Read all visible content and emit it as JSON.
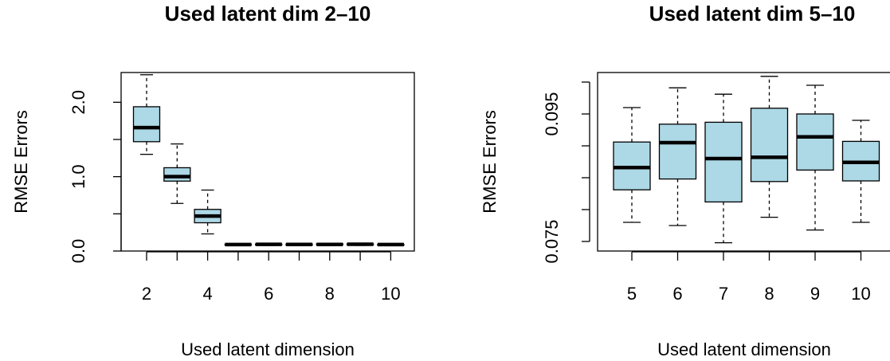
{
  "chart_data": [
    {
      "type": "boxplot",
      "title": "Used latent dim 2–10",
      "xlabel": "Used latent dimension",
      "ylabel": "RMSE Errors",
      "ylim": [
        0,
        2.4
      ],
      "grid": false,
      "box_color": "#add8e6",
      "categories": [
        "2",
        "3",
        "4",
        "5",
        "6",
        "7",
        "8",
        "9",
        "10"
      ],
      "x_tick_labels": [
        "2",
        "4",
        "6",
        "8",
        "10"
      ],
      "y_ticks": [
        0.0,
        0.5,
        1.0,
        1.5,
        2.0
      ],
      "y_tick_labels": [
        "0.0",
        "1.0",
        "2.0"
      ],
      "boxes": [
        {
          "category": "2",
          "whisker_low": 1.3,
          "q1": 1.47,
          "median": 1.66,
          "q3": 1.94,
          "whisker_high": 2.37
        },
        {
          "category": "3",
          "whisker_low": 0.64,
          "q1": 0.94,
          "median": 1.0,
          "q3": 1.12,
          "whisker_high": 1.44
        },
        {
          "category": "4",
          "whisker_low": 0.23,
          "q1": 0.38,
          "median": 0.47,
          "q3": 0.56,
          "whisker_high": 0.82
        },
        {
          "category": "5",
          "whisker_low": 0.075,
          "q1": 0.082,
          "median": 0.087,
          "q3": 0.091,
          "whisker_high": 0.097
        },
        {
          "category": "6",
          "whisker_low": 0.075,
          "q1": 0.084,
          "median": 0.09,
          "q3": 0.093,
          "whisker_high": 0.099
        },
        {
          "category": "7",
          "whisker_low": 0.075,
          "q1": 0.079,
          "median": 0.088,
          "q3": 0.094,
          "whisker_high": 0.098
        },
        {
          "category": "8",
          "whisker_low": 0.075,
          "q1": 0.084,
          "median": 0.088,
          "q3": 0.097,
          "whisker_high": 0.101
        },
        {
          "category": "9",
          "whisker_low": 0.075,
          "q1": 0.086,
          "median": 0.091,
          "q3": 0.095,
          "whisker_high": 0.1
        },
        {
          "category": "10",
          "whisker_low": 0.075,
          "q1": 0.084,
          "median": 0.087,
          "q3": 0.09,
          "whisker_high": 0.095
        }
      ]
    },
    {
      "type": "boxplot",
      "title": "Used latent dim 5–10",
      "xlabel": "Used latent dimension",
      "ylabel": "RMSE Errors",
      "ylim": [
        0.0735,
        0.1015
      ],
      "grid": false,
      "box_color": "#add8e6",
      "categories": [
        "5",
        "6",
        "7",
        "8",
        "9",
        "10"
      ],
      "x_tick_labels": [
        "5",
        "6",
        "7",
        "8",
        "9",
        "10"
      ],
      "y_ticks": [
        0.075,
        0.08,
        0.085,
        0.09,
        0.095,
        0.1
      ],
      "y_tick_labels": [
        "0.075",
        "0.095"
      ],
      "boxes": [
        {
          "category": "5",
          "whisker_low": 0.078,
          "q1": 0.0831,
          "median": 0.0866,
          "q3": 0.0906,
          "whisker_high": 0.096
        },
        {
          "category": "6",
          "whisker_low": 0.0775,
          "q1": 0.0848,
          "median": 0.0905,
          "q3": 0.0934,
          "whisker_high": 0.0991
        },
        {
          "category": "7",
          "whisker_low": 0.0748,
          "q1": 0.0812,
          "median": 0.088,
          "q3": 0.0937,
          "whisker_high": 0.0981
        },
        {
          "category": "8",
          "whisker_low": 0.0788,
          "q1": 0.0844,
          "median": 0.0882,
          "q3": 0.0959,
          "whisker_high": 0.1009
        },
        {
          "category": "9",
          "whisker_low": 0.0768,
          "q1": 0.0862,
          "median": 0.0914,
          "q3": 0.095,
          "whisker_high": 0.0995
        },
        {
          "category": "10",
          "whisker_low": 0.078,
          "q1": 0.0845,
          "median": 0.0874,
          "q3": 0.0907,
          "whisker_high": 0.094
        }
      ]
    }
  ]
}
